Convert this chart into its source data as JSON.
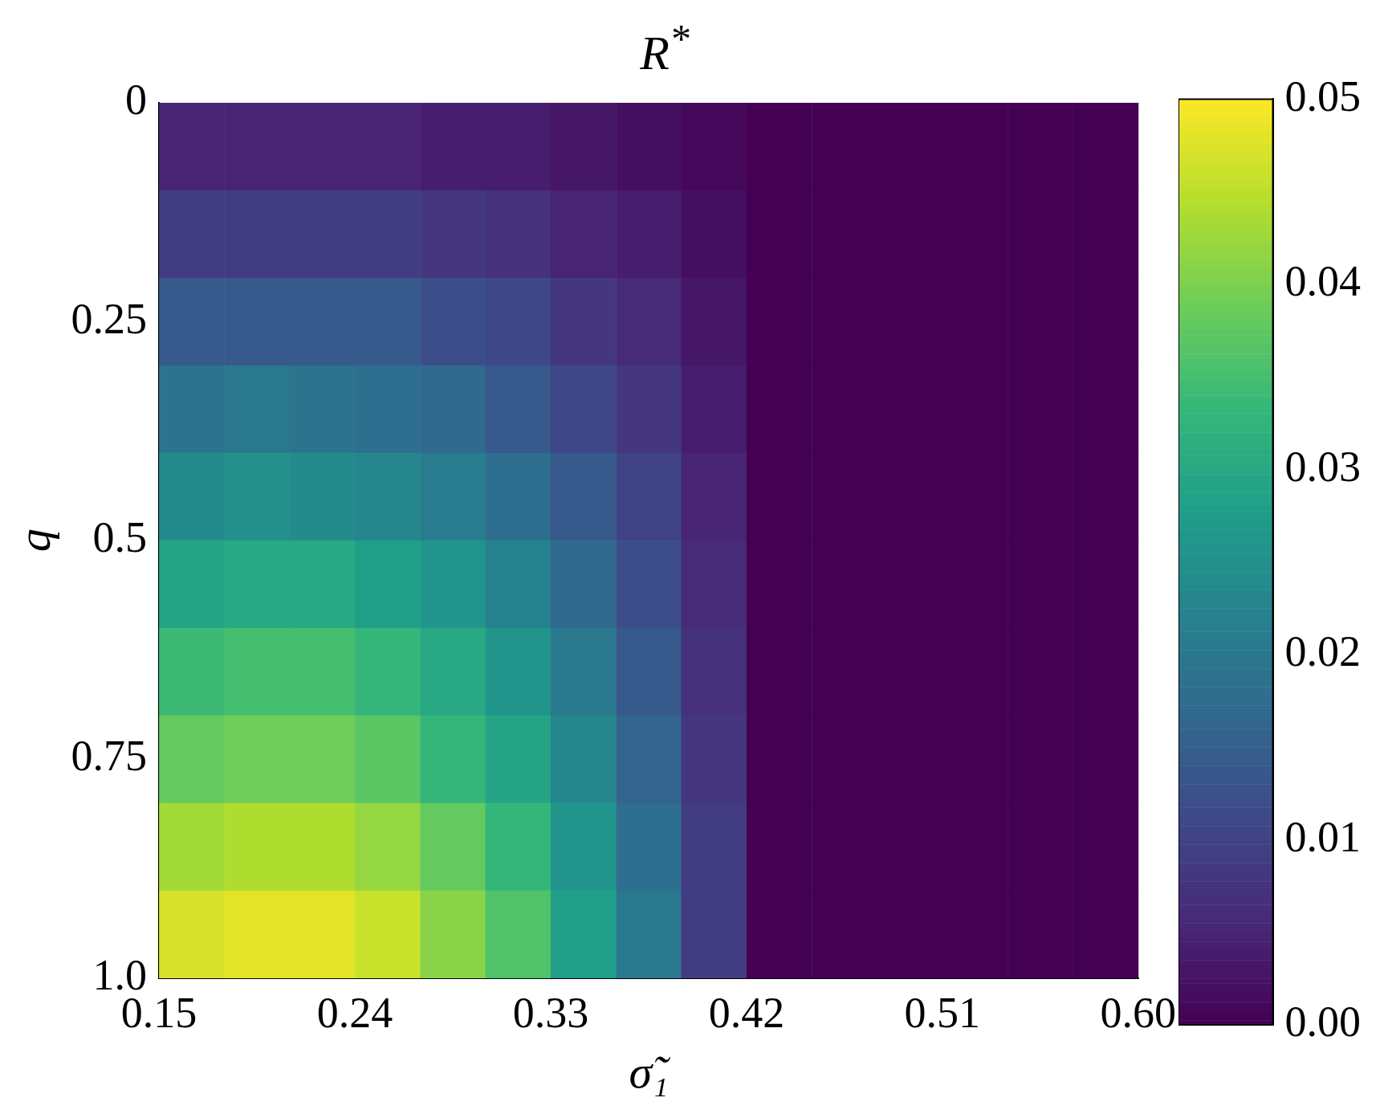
{
  "chart_data": {
    "type": "heatmap",
    "title": "R$^{*}$",
    "xlabel": "σ̃₁",
    "ylabel": "q",
    "xlim": [
      0.15,
      0.6
    ],
    "xticks": [
      0.15,
      0.24,
      0.33,
      0.42,
      0.51,
      {
        "value": 0.6,
        "label": "0.60"
      }
    ],
    "ylim": [
      1.0,
      0
    ],
    "yticks": [
      0,
      0.25,
      0.5,
      0.75,
      {
        "value": 1.0,
        "label": "1.0"
      }
    ],
    "clim": [
      0,
      0.05
    ],
    "cticks": [
      {
        "value": 0,
        "label": "0.00"
      },
      0.01,
      0.02,
      0.03,
      0.04,
      0.05
    ],
    "cells": [
      [
        0.005,
        0.005,
        0.005,
        0.005,
        0.004,
        0.004,
        0.003,
        0.002,
        0.001,
        0,
        0,
        0,
        0,
        0,
        0
      ],
      [
        0.009,
        0.009,
        0.009,
        0.009,
        0.008,
        0.007,
        0.005,
        0.004,
        0.002,
        0,
        0,
        0,
        0,
        0,
        0
      ],
      [
        0.014,
        0.014,
        0.014,
        0.014,
        0.012,
        0.011,
        0.008,
        0.006,
        0.003,
        0,
        0,
        0,
        0,
        0,
        0
      ],
      [
        0.019,
        0.02,
        0.019,
        0.018,
        0.017,
        0.014,
        0.011,
        0.008,
        0.004,
        0,
        0,
        0,
        0,
        0,
        0
      ],
      [
        0.024,
        0.025,
        0.024,
        0.023,
        0.021,
        0.018,
        0.014,
        0.01,
        0.005,
        0,
        0,
        0,
        0,
        0,
        0
      ],
      [
        0.029,
        0.03,
        0.03,
        0.028,
        0.026,
        0.022,
        0.017,
        0.012,
        0.006,
        0,
        0,
        0,
        0,
        0,
        0
      ],
      [
        0.034,
        0.035,
        0.035,
        0.033,
        0.03,
        0.026,
        0.02,
        0.014,
        0.007,
        0,
        0,
        0,
        0,
        0,
        0
      ],
      [
        0.038,
        0.039,
        0.039,
        0.037,
        0.033,
        0.029,
        0.023,
        0.016,
        0.008,
        0,
        0,
        0,
        0,
        0,
        0
      ],
      [
        0.043,
        0.044,
        0.044,
        0.042,
        0.038,
        0.033,
        0.026,
        0.018,
        0.009,
        0,
        0,
        0,
        0,
        0,
        0
      ],
      [
        0.047,
        0.048,
        0.048,
        0.046,
        0.041,
        0.036,
        0.028,
        0.02,
        0.009,
        0,
        0,
        0,
        0,
        0,
        0
      ]
    ]
  }
}
